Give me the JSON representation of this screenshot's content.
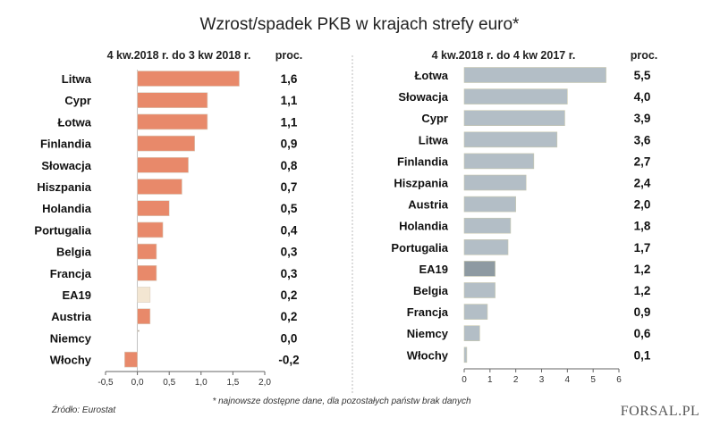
{
  "title": "Wzrost/spadek PKB w krajach strefy euro*",
  "note": "* najnowsze dostępne dane, dla pozostałych państw brak danych",
  "source": "Źródło: Eurostat",
  "logo": "FORSAL.PL",
  "colors": {
    "left_bar": "#E8896A",
    "left_highlight": "#F3E6D2",
    "right_bar": "#B3BEC6",
    "right_highlight": "#8E9AA2"
  },
  "chart_data": [
    {
      "type": "bar",
      "orientation": "horizontal",
      "subtitle": "4 kw.2018 r. do 3 kw 2018 r.",
      "value_header": "proc.",
      "categories": [
        "Litwa",
        "Cypr",
        "Łotwa",
        "Finlandia",
        "Słowacja",
        "Hiszpania",
        "Holandia",
        "Portugalia",
        "Belgia",
        "Francja",
        "EA19",
        "Austria",
        "Niemcy",
        "Włochy"
      ],
      "values": [
        1.6,
        1.1,
        1.1,
        0.9,
        0.8,
        0.7,
        0.5,
        0.4,
        0.3,
        0.3,
        0.2,
        0.2,
        0.0,
        -0.2
      ],
      "value_labels": [
        "1,6",
        "1,1",
        "1,1",
        "0,9",
        "0,8",
        "0,7",
        "0,5",
        "0,4",
        "0,3",
        "0,3",
        "0,2",
        "0,2",
        "0,0",
        "-0,2"
      ],
      "highlight": "EA19",
      "xlim": [
        -0.5,
        2.0
      ],
      "ticks": [
        -0.5,
        0,
        0.5,
        1,
        1.5,
        2
      ],
      "tick_labels": [
        "-0,5",
        "0,0",
        "0,5",
        "1,0",
        "1,5",
        "2,0"
      ]
    },
    {
      "type": "bar",
      "orientation": "horizontal",
      "subtitle": "4 kw.2018 r. do 4 kw 2017 r.",
      "value_header": "proc.",
      "categories": [
        "Łotwa",
        "Słowacja",
        "Cypr",
        "Litwa",
        "Finlandia",
        "Hiszpania",
        "Austria",
        "Holandia",
        "Portugalia",
        "EA19",
        "Belgia",
        "Francja",
        "Niemcy",
        "Włochy"
      ],
      "values": [
        5.5,
        4.0,
        3.9,
        3.6,
        2.7,
        2.4,
        2.0,
        1.8,
        1.7,
        1.2,
        1.2,
        0.9,
        0.6,
        0.1
      ],
      "value_labels": [
        "5,5",
        "4,0",
        "3,9",
        "3,6",
        "2,7",
        "2,4",
        "2,0",
        "1,8",
        "1,7",
        "1,2",
        "1,2",
        "0,9",
        "0,6",
        "0,1"
      ],
      "highlight": "EA19",
      "xlim": [
        0,
        6
      ],
      "ticks": [
        0,
        1,
        2,
        3,
        4,
        5,
        6
      ],
      "tick_labels": [
        "0",
        "1",
        "2",
        "3",
        "4",
        "5",
        "6"
      ]
    }
  ]
}
